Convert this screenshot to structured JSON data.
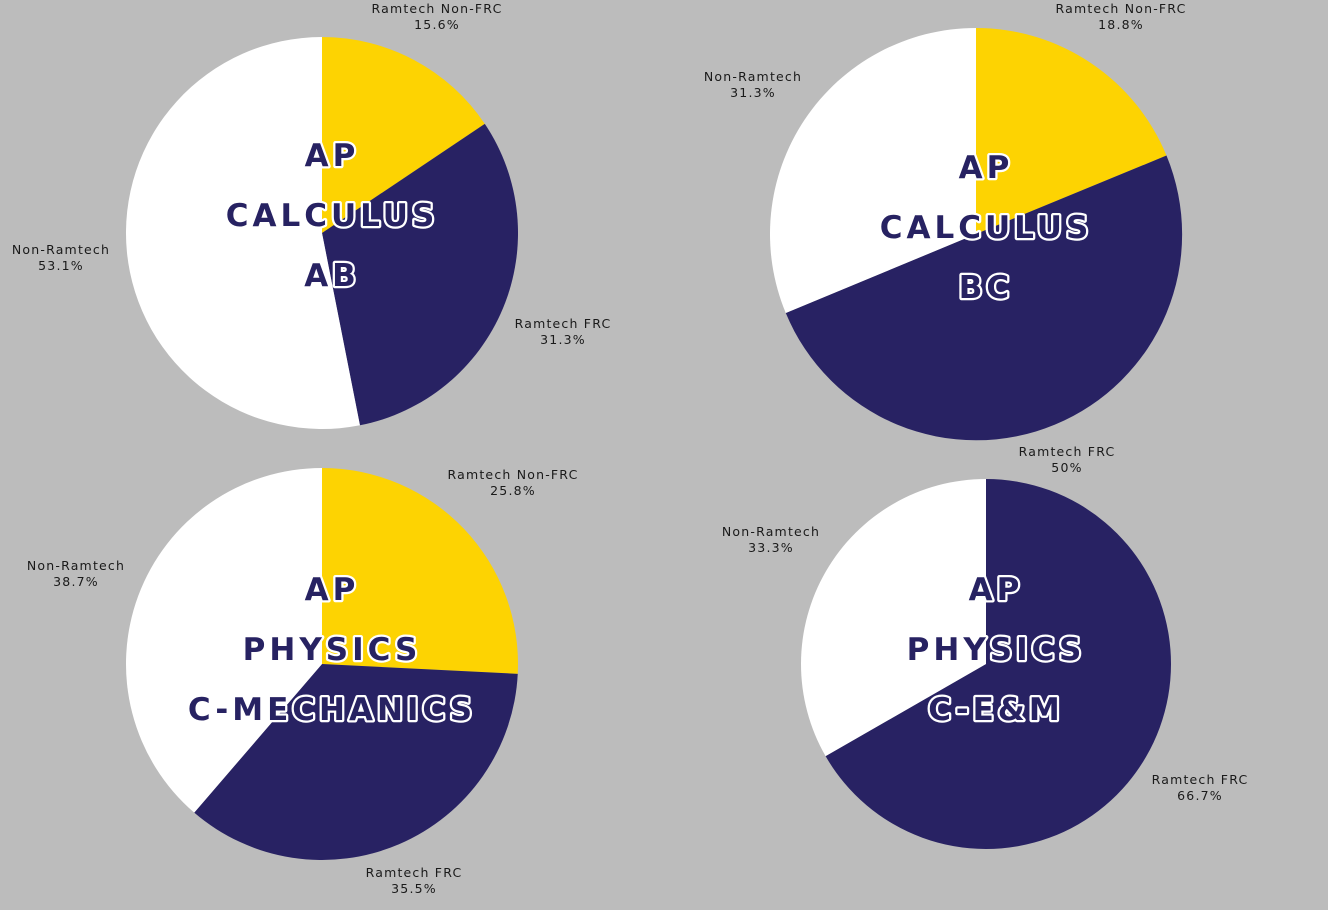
{
  "colors": {
    "background": "#bcbcbc",
    "Ramtech Non-FRC": "#fdd302",
    "Ramtech FRC": "#282263",
    "Non-Ramtech": "#ffffff",
    "title_fill": "#272262",
    "title_outline": "#ffffff"
  },
  "chart_data": [
    {
      "type": "pie",
      "title": [
        "AP",
        "CALCULUS",
        "AB"
      ],
      "slices": [
        {
          "label": "Ramtech Non-FRC",
          "value": 15.6,
          "value_text": "15.6%"
        },
        {
          "label": "Ramtech FRC",
          "value": 31.3,
          "value_text": "31.3%"
        },
        {
          "label": "Non-Ramtech",
          "value": 53.1,
          "value_text": "53.1%"
        }
      ]
    },
    {
      "type": "pie",
      "title": [
        "AP",
        "CALCULUS",
        "BC"
      ],
      "slices": [
        {
          "label": "Ramtech Non-FRC",
          "value": 18.8,
          "value_text": "18.8%"
        },
        {
          "label": "Ramtech FRC",
          "value": 50,
          "value_text": "50%"
        },
        {
          "label": "Non-Ramtech",
          "value": 31.3,
          "value_text": "31.3%"
        }
      ]
    },
    {
      "type": "pie",
      "title": [
        "AP",
        "PHYSICS",
        "C-MECHANICS"
      ],
      "slices": [
        {
          "label": "Ramtech Non-FRC",
          "value": 25.8,
          "value_text": "25.8%"
        },
        {
          "label": "Ramtech FRC",
          "value": 35.5,
          "value_text": "35.5%"
        },
        {
          "label": "Non-Ramtech",
          "value": 38.7,
          "value_text": "38.7%"
        }
      ]
    },
    {
      "type": "pie",
      "title": [
        "AP",
        "PHYSICS",
        "C-E&M"
      ],
      "slices": [
        {
          "label": "Ramtech FRC",
          "value": 66.7,
          "value_text": "66.7%"
        },
        {
          "label": "Non-Ramtech",
          "value": 33.3,
          "value_text": "33.3%"
        }
      ]
    }
  ]
}
